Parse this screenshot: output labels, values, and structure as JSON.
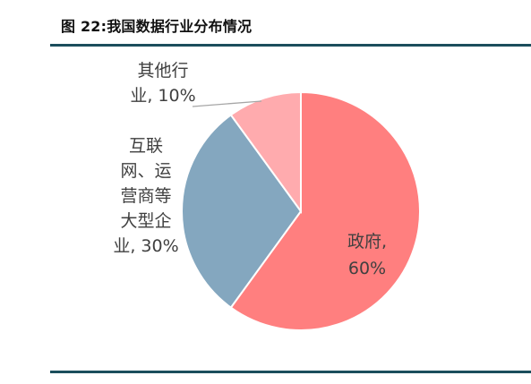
{
  "figure": {
    "title": "图 22:我国数据行业分布情况"
  },
  "chart_data": {
    "type": "pie",
    "title": "图 22:我国数据行业分布情况",
    "start_angle_deg": 0,
    "direction": "clockwise",
    "legend": "none",
    "slices": [
      {
        "name": "政府",
        "value": 60,
        "label_lines": [
          "政府,",
          "60%"
        ],
        "color": "#ff7f7f"
      },
      {
        "name": "互联网、运营商等大型企业",
        "value": 30,
        "label_lines": [
          "互联",
          "网、运",
          "营商等",
          "大型企",
          "业, 30%"
        ],
        "color": "#84a7bf"
      },
      {
        "name": "其他行业",
        "value": 10,
        "label_lines": [
          "其他行",
          "业, 10%"
        ],
        "color": "#ffabae"
      }
    ]
  }
}
